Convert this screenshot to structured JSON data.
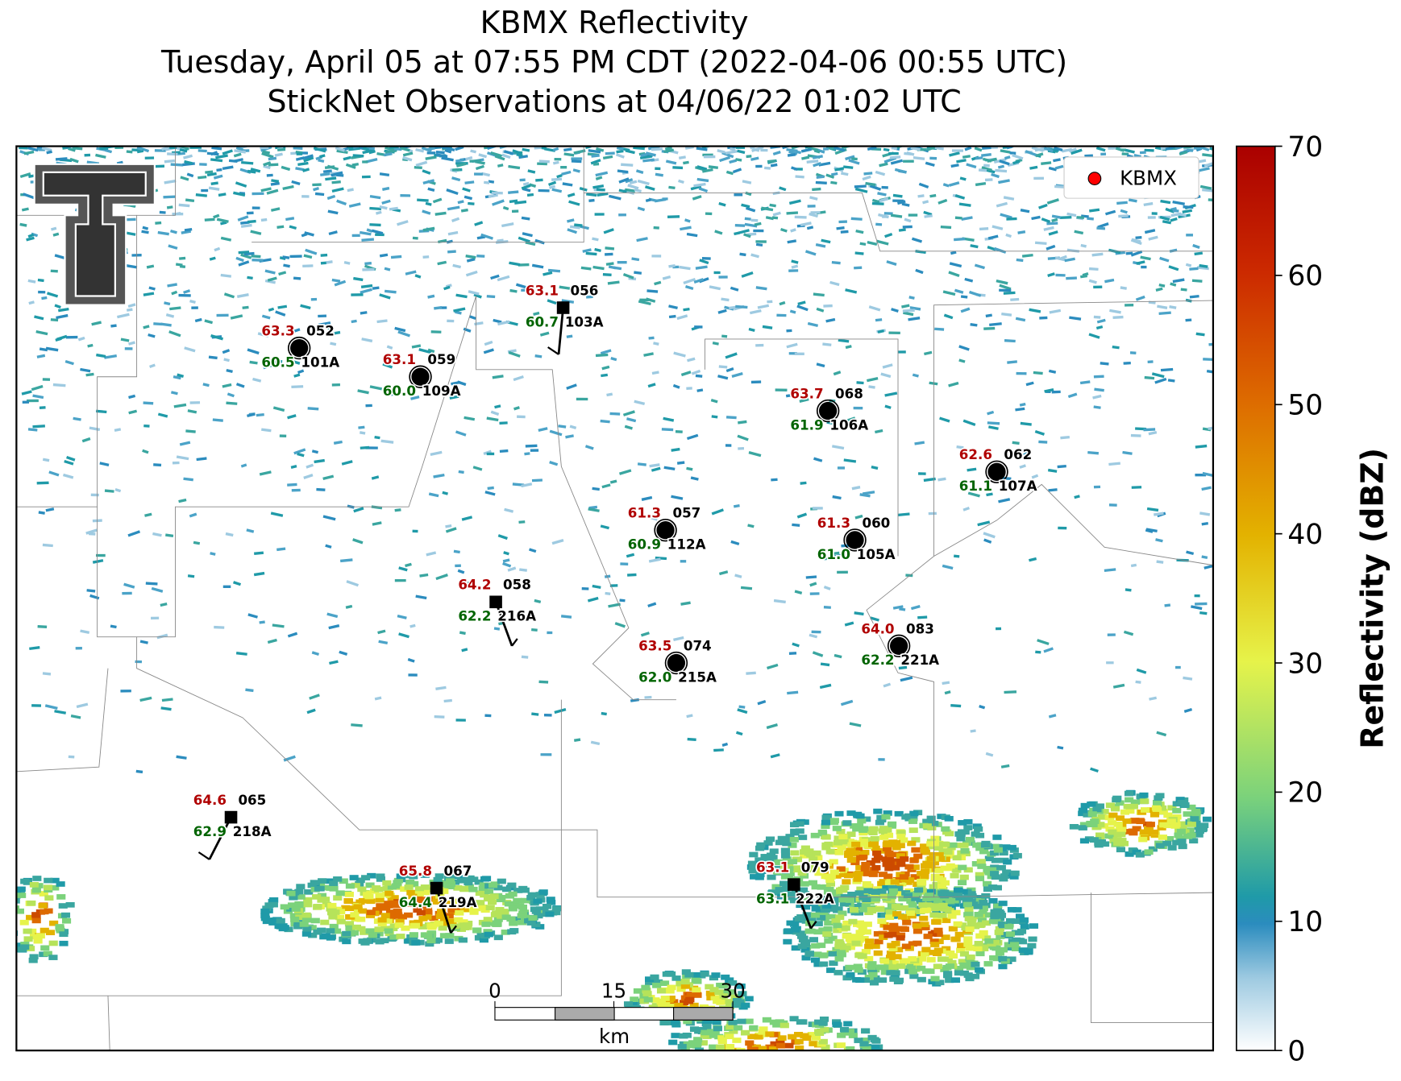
{
  "header": {
    "title": "KBMX Reflectivity",
    "subtitle": "Tuesday, April 05 at 07:55 PM CDT (2022-04-06 00:55 UTC)",
    "observations": "StickNet Observations at 04/06/22 01:02 UTC"
  },
  "legend": {
    "label": "KBMX"
  },
  "colorbar": {
    "label": "Reflectivity (dBZ)",
    "lim": [
      0,
      70
    ],
    "ticks": [
      0,
      10,
      20,
      30,
      40,
      50,
      60,
      70
    ]
  },
  "scale_bar": {
    "ticks": [
      0,
      15,
      30
    ],
    "unit": "km"
  },
  "stations": [
    {
      "temperature": "63.3",
      "dewpoint": "60.5",
      "id": "052",
      "probe": "101A"
    },
    {
      "temperature": "63.1",
      "dewpoint": "60.0",
      "id": "059",
      "probe": "109A"
    },
    {
      "temperature": "63.1",
      "dewpoint": "60.7",
      "id": "056",
      "probe": "103A"
    },
    {
      "temperature": "63.7",
      "dewpoint": "61.9",
      "id": "068",
      "probe": "106A"
    },
    {
      "temperature": "62.6",
      "dewpoint": "61.1",
      "id": "062",
      "probe": "107A"
    },
    {
      "temperature": "61.3",
      "dewpoint": "60.9",
      "id": "057",
      "probe": "112A"
    },
    {
      "temperature": "61.3",
      "dewpoint": "61.0",
      "id": "060",
      "probe": "105A"
    },
    {
      "temperature": "64.2",
      "dewpoint": "62.2",
      "id": "058",
      "probe": "216A"
    },
    {
      "temperature": "63.5",
      "dewpoint": "62.0",
      "id": "074",
      "probe": "215A"
    },
    {
      "temperature": "64.0",
      "dewpoint": "62.2",
      "id": "083",
      "probe": "221A"
    },
    {
      "temperature": "64.6",
      "dewpoint": "62.9",
      "id": "065",
      "probe": "218A"
    },
    {
      "temperature": "65.8",
      "dewpoint": "64.4",
      "id": "067",
      "probe": "219A"
    },
    {
      "temperature": "63.1",
      "dewpoint": "63.1",
      "id": "079",
      "probe": "222A"
    }
  ]
}
